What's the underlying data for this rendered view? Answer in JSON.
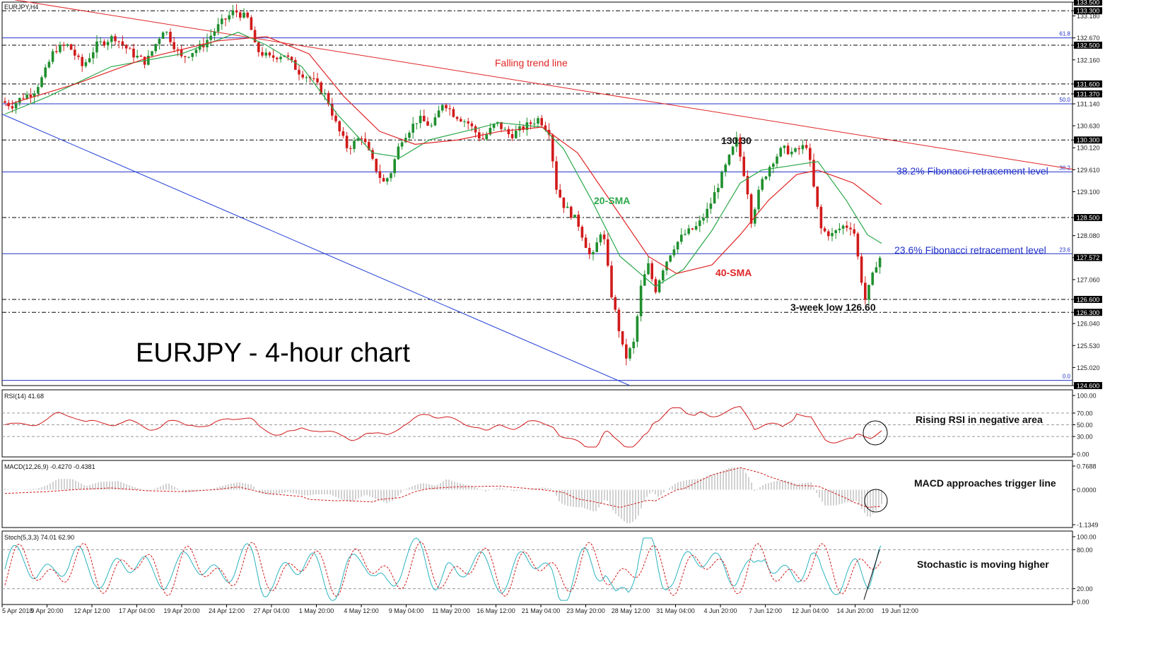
{
  "symbol": "EURJPY,H4",
  "headline": "EURJPY - 4-hour chart",
  "colors": {
    "bull": "#1f8f2e",
    "bear": "#d11a1a",
    "sma20": "#2aa84a",
    "sma40": "#e02525",
    "trend": "#e02525",
    "support": "#1f3fd6",
    "fib": "#2030c8",
    "rsi": "#d11a1a",
    "macd_hist": "#bdbdbd",
    "macd_signal": "#d11a1a",
    "stoch_k": "#2bb3c0",
    "stoch_d": "#d11a1a",
    "pricebox": "#000000"
  },
  "annotations": {
    "falling_trend": "Falling trend line",
    "fib382": "38.2% Fibonacci retracement level",
    "fib236": "23.6% Fibonacci retracement level",
    "sma20": "20-SMA",
    "sma40": "40-SMA",
    "high": "130.30",
    "low": "3-week low 126.60",
    "rsi_note": "Rising RSI in negative area",
    "macd_note": "MACD approaches trigger line",
    "stoch_note": "Stochastic is moving higher"
  },
  "chart_data": {
    "type": "candlestick",
    "price_axis": {
      "range": [
        124.6,
        133.5
      ],
      "ticks": [
        "133.500",
        "133.300",
        "133.180",
        "132.670",
        "132.500",
        "132.160",
        "131.600",
        "131.370",
        "131.140",
        "130.630",
        "130.300",
        "130.120",
        "129.610",
        "129.100",
        "128.500",
        "128.080",
        "127.572",
        "127.060",
        "126.600",
        "126.300",
        "126.040",
        "125.530",
        "125.020",
        "124.600"
      ],
      "boxed": [
        "133.500",
        "133.300",
        "132.500",
        "131.600",
        "131.370",
        "130.300",
        "128.500",
        "127.572",
        "126.600",
        "126.300",
        "124.600"
      ],
      "last_price": 127.572
    },
    "horizontal_levels": [
      133.5,
      133.3,
      132.5,
      131.6,
      131.37,
      130.3,
      128.5,
      126.6,
      126.3,
      124.6
    ],
    "fibonacci_levels": [
      {
        "label": "61.8",
        "price": 132.67
      },
      {
        "label": "50.0",
        "price": 131.14
      },
      {
        "label": "38.2",
        "price": 129.56
      },
      {
        "label": "23.6",
        "price": 127.66
      },
      {
        "label": "0.0",
        "price": 124.72
      }
    ],
    "x_axis_labels": [
      "5 Apr 2018",
      "9 Apr 20:00",
      "12 Apr 12:00",
      "17 Apr 04:00",
      "19 Apr 20:00",
      "24 Apr 12:00",
      "27 Apr 04:00",
      "1 May 20:00",
      "4 May 12:00",
      "9 May 04:00",
      "11 May 20:00",
      "16 May 12:00",
      "21 May 04:00",
      "23 May 20:00",
      "28 May 12:00",
      "31 May 04:00",
      "4 Jun 20:00",
      "7 Jun 12:00",
      "12 Jun 04:00",
      "14 Jun 20:00",
      "19 Jun 12:00"
    ],
    "price_path": [
      [
        0,
        131.2
      ],
      [
        15,
        131.1
      ],
      [
        30,
        131.3
      ],
      [
        45,
        131.4
      ],
      [
        60,
        131.8
      ],
      [
        75,
        132.4
      ],
      [
        95,
        132.5
      ],
      [
        115,
        132.0
      ],
      [
        135,
        132.5
      ],
      [
        160,
        132.7
      ],
      [
        185,
        132.3
      ],
      [
        205,
        132.1
      ],
      [
        230,
        132.9
      ],
      [
        255,
        132.2
      ],
      [
        285,
        132.5
      ],
      [
        310,
        133.0
      ],
      [
        330,
        133.3
      ],
      [
        350,
        133.1
      ],
      [
        360,
        132.4
      ],
      [
        380,
        132.2
      ],
      [
        400,
        132.3
      ],
      [
        420,
        131.9
      ],
      [
        440,
        131.7
      ],
      [
        460,
        131.3
      ],
      [
        475,
        130.6
      ],
      [
        490,
        130.1
      ],
      [
        510,
        130.4
      ],
      [
        525,
        129.8
      ],
      [
        540,
        129.3
      ],
      [
        550,
        129.5
      ],
      [
        565,
        130.3
      ],
      [
        590,
        130.8
      ],
      [
        610,
        130.6
      ],
      [
        625,
        131.2
      ],
      [
        640,
        130.9
      ],
      [
        660,
        130.7
      ],
      [
        680,
        130.3
      ],
      [
        700,
        130.7
      ],
      [
        720,
        130.4
      ],
      [
        740,
        130.6
      ],
      [
        760,
        130.8
      ],
      [
        775,
        130.5
      ],
      [
        785,
        129.2
      ],
      [
        795,
        128.8
      ],
      [
        815,
        128.4
      ],
      [
        835,
        127.5
      ],
      [
        850,
        128.3
      ],
      [
        862,
        126.8
      ],
      [
        875,
        125.8
      ],
      [
        882,
        125.2
      ],
      [
        895,
        125.6
      ],
      [
        905,
        126.9
      ],
      [
        915,
        127.4
      ],
      [
        925,
        126.8
      ],
      [
        935,
        127.3
      ],
      [
        950,
        127.8
      ],
      [
        965,
        128.1
      ],
      [
        985,
        128.3
      ],
      [
        1000,
        128.7
      ],
      [
        1015,
        129.3
      ],
      [
        1030,
        129.9
      ],
      [
        1040,
        130.3
      ],
      [
        1055,
        129.2
      ],
      [
        1060,
        128.4
      ],
      [
        1075,
        129.3
      ],
      [
        1090,
        129.8
      ],
      [
        1105,
        130.1
      ],
      [
        1120,
        130.0
      ],
      [
        1140,
        130.2
      ],
      [
        1150,
        129.1
      ],
      [
        1160,
        128.2
      ],
      [
        1175,
        128.1
      ],
      [
        1190,
        128.3
      ],
      [
        1205,
        128.3
      ],
      [
        1215,
        127.2
      ],
      [
        1222,
        126.6
      ],
      [
        1230,
        127.0
      ],
      [
        1240,
        127.57
      ]
    ],
    "sma20_path": [
      [
        0,
        130.9
      ],
      [
        60,
        131.3
      ],
      [
        150,
        132.0
      ],
      [
        250,
        132.3
      ],
      [
        330,
        132.8
      ],
      [
        370,
        132.5
      ],
      [
        420,
        132.0
      ],
      [
        470,
        130.9
      ],
      [
        520,
        130.0
      ],
      [
        560,
        129.9
      ],
      [
        600,
        130.3
      ],
      [
        650,
        130.5
      ],
      [
        700,
        130.7
      ],
      [
        760,
        130.6
      ],
      [
        790,
        130.1
      ],
      [
        830,
        128.9
      ],
      [
        870,
        127.6
      ],
      [
        920,
        126.9
      ],
      [
        960,
        127.3
      ],
      [
        1000,
        128.2
      ],
      [
        1040,
        129.3
      ],
      [
        1070,
        129.6
      ],
      [
        1110,
        129.7
      ],
      [
        1150,
        129.8
      ],
      [
        1190,
        128.9
      ],
      [
        1220,
        128.1
      ],
      [
        1240,
        127.9
      ]
    ],
    "sma40_path": [
      [
        0,
        131.1
      ],
      [
        100,
        131.6
      ],
      [
        200,
        132.2
      ],
      [
        300,
        132.6
      ],
      [
        370,
        132.7
      ],
      [
        430,
        132.3
      ],
      [
        480,
        131.3
      ],
      [
        530,
        130.5
      ],
      [
        580,
        130.2
      ],
      [
        640,
        130.3
      ],
      [
        700,
        130.5
      ],
      [
        760,
        130.6
      ],
      [
        810,
        130.0
      ],
      [
        860,
        128.8
      ],
      [
        910,
        127.6
      ],
      [
        950,
        127.2
      ],
      [
        1000,
        127.4
      ],
      [
        1040,
        128.1
      ],
      [
        1080,
        128.9
      ],
      [
        1120,
        129.5
      ],
      [
        1150,
        129.6
      ],
      [
        1200,
        129.3
      ],
      [
        1240,
        128.8
      ]
    ],
    "trend_line": {
      "from": [
        0,
        133.6
      ],
      "to": [
        1515,
        129.62
      ]
    },
    "support_line": {
      "from": [
        0,
        130.9
      ],
      "to": [
        888,
        124.6
      ]
    },
    "rsi": {
      "label": "RSI(14) 41.68",
      "range": [
        0,
        100
      ],
      "ticks": [
        "100.00",
        "70.00",
        "50.00",
        "30.00",
        "0.00"
      ],
      "levels": [
        70,
        50,
        30
      ]
    },
    "macd": {
      "label": "MACD(12,26,9) -0.4270 -0.4381",
      "range": [
        -1.1349,
        0.7688
      ],
      "ticks": [
        "0.7688",
        "0.0000",
        "-1.1349"
      ]
    },
    "stochastic": {
      "label": "Stoch(5,3,3) 74.01 62.90",
      "range": [
        0,
        100
      ],
      "ticks": [
        "100.00",
        "80.00",
        "20.00",
        "0.00"
      ],
      "levels": [
        80,
        20
      ]
    }
  }
}
